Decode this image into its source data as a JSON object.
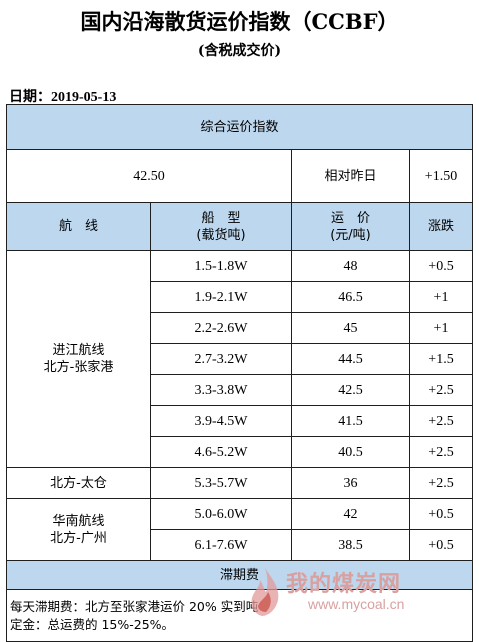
{
  "header": {
    "title": "国内沿海散货运价指数（CCBF）",
    "subtitle": "(含税成交价)",
    "date": "日期：2019-05-13"
  },
  "composite": {
    "label": "综合运价指数",
    "value": "42.50",
    "compare_label": "相对昨日",
    "change": "+1.50"
  },
  "columns": {
    "route": "航　线",
    "ship": [
      "船　型",
      "(载货吨)"
    ],
    "freight": [
      "运　价",
      "(元/吨)"
    ],
    "change": "涨跌"
  },
  "routes": [
    {
      "name": [
        "进江航线",
        "北方-张家港"
      ],
      "rows": [
        {
          "ship": "1.5-1.8W",
          "freight": "48",
          "change": "+0.5"
        },
        {
          "ship": "1.9-2.1W",
          "freight": "46.5",
          "change": "+1"
        },
        {
          "ship": "2.2-2.6W",
          "freight": "45",
          "change": "+1"
        },
        {
          "ship": "2.7-3.2W",
          "freight": "44.5",
          "change": "+1.5"
        },
        {
          "ship": "3.3-3.8W",
          "freight": "42.5",
          "change": "+2.5"
        },
        {
          "ship": "3.9-4.5W",
          "freight": "41.5",
          "change": "+2.5"
        },
        {
          "ship": "4.6-5.2W",
          "freight": "40.5",
          "change": "+2.5"
        }
      ]
    },
    {
      "name": [
        "北方-太仓"
      ],
      "rows": [
        {
          "ship": "5.3-5.7W",
          "freight": "36",
          "change": "+2.5"
        }
      ]
    },
    {
      "name": [
        "华南航线",
        "北方-广州"
      ],
      "rows": [
        {
          "ship": "5.0-6.0W",
          "freight": "42",
          "change": "+0.5"
        },
        {
          "ship": "6.1-7.6W",
          "freight": "38.5",
          "change": "+0.5"
        }
      ]
    }
  ],
  "demurrage": {
    "label": "滞期费",
    "note_line1": "每天滞期费：北方至张家港运价 20% 实到吨",
    "note_line2": "定金：总运费的 15%-25%。"
  },
  "watermark": {
    "text": "我的煤炭网",
    "url": "www.mycoal.cn",
    "color": "#d9a0a0"
  }
}
